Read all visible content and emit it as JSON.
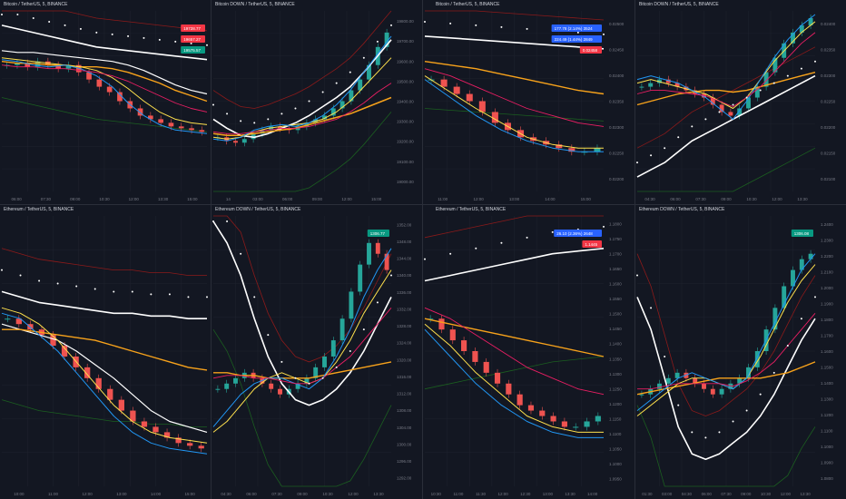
{
  "colors": {
    "background": "#131722",
    "grid": "#1e222d",
    "up": "#26a69a",
    "down": "#ef5350",
    "ema_white": "#ffffff",
    "ema_orange": "#f7a21b",
    "ema_yellow": "#ffe14d",
    "ema_blue": "#2196f3",
    "ema_pink": "#e91e63",
    "band_dark_red": "#8b1a1a",
    "band_dark_green": "#1b5e20",
    "dashed_red": "#f23645",
    "target_green": "#1b7a2a",
    "label_blue": "#2962ff"
  },
  "chart_data": [
    {
      "id": "p1",
      "type": "line",
      "title": "Bitcoin / TetherUS, 5, BINANCE",
      "x_ticks": [
        "06:00",
        "07:30",
        "09:00",
        "10:30",
        "12:00",
        "13:30",
        "15:00"
      ],
      "y_ticks": [],
      "price_labels": [
        {
          "text": "19728.77",
          "color": "#f23645"
        },
        {
          "text": "19657.27",
          "color": "#f23645"
        },
        {
          "text": "19575.57",
          "color": "#089981"
        }
      ],
      "series": [
        {
          "color": "#ffffff",
          "width": 1.6,
          "values": [
            92,
            90,
            88,
            86,
            84,
            82,
            80,
            79,
            78,
            77,
            76,
            75,
            74,
            73
          ]
        },
        {
          "color": "#ffffff",
          "width": 1.2,
          "values": [
            78,
            77,
            77,
            76,
            75,
            74,
            73,
            72,
            70,
            67,
            63,
            59,
            56,
            54
          ]
        },
        {
          "color": "#f7a21b",
          "width": 1.4,
          "values": [
            72,
            71,
            71,
            70,
            70,
            69,
            69,
            68,
            66,
            63,
            60,
            56,
            53,
            50
          ]
        },
        {
          "color": "#ffe14d",
          "width": 1.0,
          "values": [
            74,
            73,
            72,
            71,
            70,
            69,
            67,
            63,
            57,
            50,
            44,
            40,
            38,
            37
          ]
        },
        {
          "color": "#2196f3",
          "width": 1.0,
          "values": [
            73,
            72,
            70,
            69,
            70,
            68,
            64,
            58,
            49,
            42,
            37,
            34,
            33,
            32
          ]
        },
        {
          "color": "#e91e63",
          "width": 0.9,
          "values": [
            70,
            69,
            69,
            68,
            68,
            67,
            66,
            64,
            61,
            57,
            53,
            49,
            46,
            44
          ]
        }
      ],
      "candles": [
        70,
        71,
        69,
        72,
        70,
        68,
        70,
        66,
        62,
        58,
        55,
        50,
        46,
        42,
        40,
        38,
        36,
        35,
        34,
        33
      ]
    },
    {
      "id": "p2",
      "type": "line",
      "title": "Bitcoin DOWN / TetherUS, 5, BINANCE",
      "x_ticks": [
        "14",
        "03:00",
        "06:00",
        "09:00",
        "12:00",
        "15:00"
      ],
      "y_ticks": [
        "19800.00",
        "19700.00",
        "19600.00",
        "19500.00",
        "19400.00",
        "19300.00",
        "19200.00",
        "19100.00",
        "19000.00"
      ],
      "price_labels": [],
      "series": [
        {
          "color": "#ffffff",
          "width": 1.6,
          "values": [
            40,
            35,
            31,
            30,
            32,
            35,
            38,
            42,
            47,
            52,
            58,
            66,
            75,
            84
          ]
        },
        {
          "color": "#f7a21b",
          "width": 1.5,
          "values": [
            32,
            31,
            31,
            32,
            33,
            34,
            35,
            37,
            39,
            41,
            43,
            46,
            49,
            52
          ]
        },
        {
          "color": "#ffe14d",
          "width": 1.0,
          "values": [
            30,
            29,
            30,
            33,
            35,
            36,
            37,
            38,
            40,
            44,
            50,
            58,
            66,
            74
          ]
        },
        {
          "color": "#2196f3",
          "width": 1.0,
          "values": [
            29,
            28,
            30,
            34,
            36,
            37,
            36,
            38,
            42,
            48,
            56,
            66,
            76,
            86
          ]
        },
        {
          "color": "#e91e63",
          "width": 0.9,
          "values": [
            33,
            32,
            32,
            33,
            34,
            35,
            35,
            36,
            38,
            40,
            44,
            49,
            55,
            60
          ]
        }
      ],
      "candles": [
        30,
        28,
        27,
        29,
        32,
        34,
        36,
        35,
        34,
        36,
        38,
        40,
        42,
        46,
        50,
        56,
        62,
        70,
        80,
        88
      ]
    },
    {
      "id": "p3",
      "type": "line",
      "title": "Bitcoin / TetherUS, 5, BINANCE",
      "x_ticks": [
        "11:00",
        "12:00",
        "13:00",
        "14:00",
        "15:00"
      ],
      "y_ticks": [
        "0.02500",
        "0.02450",
        "0.02400",
        "0.02350",
        "0.02300",
        "0.02250",
        "0.02200"
      ],
      "price_labels": [
        {
          "text": "177.78 (2.14%) 3524",
          "color": "#2962ff"
        },
        {
          "text": "224.49 (1.44%) 2849",
          "color": "#2962ff"
        },
        {
          "text": "0.02458",
          "color": "#f23645"
        }
      ],
      "series": [
        {
          "color": "#ffffff",
          "width": 1.6,
          "values": [
            86,
            85,
            84,
            83,
            82,
            81,
            80,
            79
          ]
        },
        {
          "color": "#f7a21b",
          "width": 1.4,
          "values": [
            72,
            70,
            68,
            65,
            62,
            59,
            56,
            54
          ]
        },
        {
          "color": "#ffe14d",
          "width": 1.0,
          "values": [
            64,
            55,
            46,
            38,
            30,
            26,
            24,
            24
          ]
        },
        {
          "color": "#2196f3",
          "width": 1.0,
          "values": [
            62,
            52,
            42,
            34,
            28,
            24,
            22,
            22
          ]
        },
        {
          "color": "#e91e63",
          "width": 0.9,
          "values": [
            68,
            64,
            58,
            52,
            46,
            42,
            38,
            36
          ]
        }
      ],
      "candles": [
        62,
        58,
        54,
        50,
        44,
        38,
        34,
        30,
        28,
        26,
        24,
        22,
        22,
        24
      ]
    },
    {
      "id": "p4",
      "type": "line",
      "title": "Bitcoin DOWN / TetherUS, 5, BINANCE",
      "x_ticks": [
        "04:30",
        "06:00",
        "07:30",
        "09:00",
        "10:30",
        "12:00",
        "13:30"
      ],
      "y_ticks": [
        "0.02400",
        "0.02350",
        "0.02300",
        "0.02250",
        "0.02200",
        "0.02150",
        "0.02100"
      ],
      "price_labels": [],
      "series": [
        {
          "color": "#ffffff",
          "width": 1.6,
          "values": [
            8,
            12,
            16,
            22,
            28,
            32,
            36,
            40,
            44,
            48,
            52,
            56,
            60,
            64
          ]
        },
        {
          "color": "#f7a21b",
          "width": 1.4,
          "values": [
            48,
            50,
            52,
            54,
            55,
            56,
            56,
            55,
            56,
            58,
            60,
            62,
            64,
            66
          ]
        },
        {
          "color": "#ffe14d",
          "width": 1.0,
          "values": [
            60,
            62,
            60,
            58,
            56,
            54,
            50,
            46,
            52,
            62,
            72,
            80,
            88,
            94
          ]
        },
        {
          "color": "#2196f3",
          "width": 1.0,
          "values": [
            62,
            64,
            62,
            60,
            56,
            52,
            46,
            40,
            50,
            62,
            74,
            84,
            92,
            98
          ]
        },
        {
          "color": "#e91e63",
          "width": 0.9,
          "values": [
            54,
            56,
            56,
            55,
            54,
            53,
            50,
            47,
            52,
            58,
            66,
            74,
            82,
            88
          ]
        }
      ],
      "candles": [
        58,
        60,
        62,
        60,
        58,
        56,
        54,
        52,
        48,
        44,
        42,
        46,
        52,
        58,
        66,
        74,
        82,
        88,
        92,
        96
      ]
    },
    {
      "id": "p5",
      "type": "line",
      "title": "Ethereum / TetherUS, 5, BINANCE",
      "x_ticks": [
        "10:00",
        "11:00",
        "12:00",
        "13:00",
        "14:00",
        "15:00"
      ],
      "y_ticks": [],
      "price_labels": [],
      "series": [
        {
          "color": "#ffffff",
          "width": 1.6,
          "values": [
            72,
            70,
            68,
            67,
            66,
            65,
            64,
            64,
            63,
            63,
            62,
            62
          ]
        },
        {
          "color": "#ffffff",
          "width": 1.2,
          "values": [
            60,
            58,
            56,
            54,
            50,
            45,
            40,
            34,
            28,
            24,
            22,
            20
          ]
        },
        {
          "color": "#f7a21b",
          "width": 1.4,
          "values": [
            58,
            58,
            57,
            56,
            55,
            54,
            52,
            50,
            48,
            46,
            44,
            43
          ]
        },
        {
          "color": "#ffe14d",
          "width": 1.0,
          "values": [
            66,
            64,
            60,
            54,
            46,
            38,
            30,
            24,
            20,
            18,
            17,
            16
          ]
        },
        {
          "color": "#2196f3",
          "width": 1.0,
          "values": [
            64,
            62,
            56,
            50,
            42,
            34,
            26,
            20,
            16,
            14,
            13,
            12
          ]
        }
      ],
      "candles": [
        62,
        60,
        58,
        56,
        52,
        48,
        44,
        40,
        36,
        32,
        28,
        24,
        22,
        20,
        18,
        16,
        15,
        14
      ]
    },
    {
      "id": "p6",
      "type": "line",
      "title": "Ethereum DOWN / TetherUS, 5, BINANCE",
      "x_ticks": [
        "04:30",
        "06:00",
        "07:30",
        "09:00",
        "10:30",
        "12:00",
        "13:30"
      ],
      "y_ticks": [
        "1352.00",
        "1348.00",
        "1344.00",
        "1340.00",
        "1336.00",
        "1332.00",
        "1328.00",
        "1324.00",
        "1320.00",
        "1316.00",
        "1312.00",
        "1308.00",
        "1304.00",
        "1300.00",
        "1296.00",
        "1292.00"
      ],
      "price_labels": [
        {
          "text": "1306.77",
          "color": "#089981"
        }
      ],
      "series": [
        {
          "color": "#ffffff",
          "width": 1.6,
          "values": [
            98,
            90,
            78,
            62,
            48,
            38,
            32,
            30,
            32,
            36,
            42,
            50,
            60,
            70
          ]
        },
        {
          "color": "#f7a21b",
          "width": 1.4,
          "values": [
            42,
            42,
            41,
            41,
            40,
            40,
            40,
            40,
            41,
            42,
            43,
            44,
            45,
            46
          ]
        },
        {
          "color": "#ffe14d",
          "width": 1.0,
          "values": [
            20,
            24,
            30,
            36,
            40,
            42,
            40,
            38,
            40,
            46,
            54,
            64,
            72,
            80
          ]
        },
        {
          "color": "#2196f3",
          "width": 1.0,
          "values": [
            22,
            28,
            34,
            38,
            40,
            40,
            38,
            36,
            40,
            48,
            58,
            70,
            80,
            88
          ]
        },
        {
          "color": "#e91e63",
          "width": 0.9,
          "values": [
            40,
            41,
            41,
            40,
            40,
            39,
            38,
            38,
            40,
            44,
            48,
            54,
            60,
            66
          ]
        }
      ],
      "candles": [
        36,
        38,
        40,
        42,
        40,
        38,
        36,
        34,
        36,
        38,
        40,
        44,
        48,
        54,
        62,
        72,
        82,
        90,
        86,
        80
      ]
    },
    {
      "id": "p7",
      "type": "line",
      "title": "Ethereum / TetherUS, 5, BINANCE",
      "x_ticks": [
        "10:30",
        "11:00",
        "11:30",
        "12:00",
        "12:30",
        "13:00",
        "13:30",
        "14:00"
      ],
      "y_ticks": [
        "1.1800",
        "1.1750",
        "1.1700",
        "1.1650",
        "1.1600",
        "1.1550",
        "1.1500",
        "1.1450",
        "1.1400",
        "1.1350",
        "1.1300",
        "1.1250",
        "1.1200",
        "1.1150",
        "1.1100",
        "1.1050",
        "1.1000",
        "1.0950"
      ],
      "price_labels": [
        {
          "text": "26.10 (2.36%) 2648",
          "color": "#2962ff"
        },
        {
          "text": "1.1445",
          "color": "#f23645"
        }
      ],
      "series": [
        {
          "color": "#ffffff",
          "width": 1.6,
          "values": [
            76,
            78,
            80,
            82,
            84,
            86,
            87,
            88
          ]
        },
        {
          "color": "#f7a21b",
          "width": 1.4,
          "values": [
            62,
            60,
            58,
            56,
            54,
            52,
            50,
            48
          ]
        },
        {
          "color": "#ffe14d",
          "width": 1.0,
          "values": [
            60,
            52,
            42,
            34,
            26,
            22,
            20,
            20
          ]
        },
        {
          "color": "#2196f3",
          "width": 1.0,
          "values": [
            58,
            48,
            38,
            30,
            24,
            20,
            18,
            18
          ]
        },
        {
          "color": "#e91e63",
          "width": 0.9,
          "values": [
            66,
            62,
            56,
            50,
            44,
            40,
            36,
            34
          ]
        }
      ],
      "candles": [
        62,
        58,
        54,
        50,
        46,
        42,
        38,
        34,
        30,
        28,
        26,
        24,
        22,
        22,
        24,
        26
      ]
    },
    {
      "id": "p8",
      "type": "line",
      "title": "Ethereum DOWN / TetherUS, 5, BINANCE",
      "x_ticks": [
        "01:30",
        "03:00",
        "04:30",
        "06:00",
        "07:30",
        "09:00",
        "10:30",
        "12:00",
        "13:30"
      ],
      "y_ticks": [
        "1.2400",
        "1.2300",
        "1.2200",
        "1.2100",
        "1.2000",
        "1.1900",
        "1.1800",
        "1.1700",
        "1.1600",
        "1.1500",
        "1.1400",
        "1.1300",
        "1.1200",
        "1.1100",
        "1.1000",
        "1.0900",
        "1.0800"
      ],
      "price_labels": [
        {
          "text": "1306.08",
          "color": "#089981"
        }
      ],
      "series": [
        {
          "color": "#ffffff",
          "width": 1.6,
          "values": [
            70,
            58,
            40,
            22,
            12,
            10,
            12,
            16,
            20,
            26,
            34,
            44,
            54,
            62
          ]
        },
        {
          "color": "#f7a21b",
          "width": 1.4,
          "values": [
            34,
            35,
            36,
            37,
            38,
            39,
            40,
            40,
            40,
            40,
            41,
            42,
            44,
            46
          ]
        },
        {
          "color": "#ffe14d",
          "width": 1.0,
          "values": [
            26,
            30,
            34,
            38,
            40,
            40,
            38,
            36,
            40,
            48,
            58,
            68,
            76,
            82
          ]
        },
        {
          "color": "#2196f3",
          "width": 1.0,
          "values": [
            28,
            32,
            36,
            40,
            42,
            40,
            38,
            36,
            40,
            50,
            60,
            70,
            80,
            86
          ]
        },
        {
          "color": "#e91e63",
          "width": 0.9,
          "values": [
            36,
            36,
            37,
            38,
            38,
            38,
            38,
            37,
            39,
            42,
            46,
            52,
            58,
            64
          ]
        }
      ],
      "candles": [
        34,
        36,
        38,
        40,
        42,
        40,
        38,
        36,
        34,
        36,
        38,
        40,
        44,
        50,
        58,
        66,
        74,
        80,
        84,
        86
      ]
    }
  ]
}
